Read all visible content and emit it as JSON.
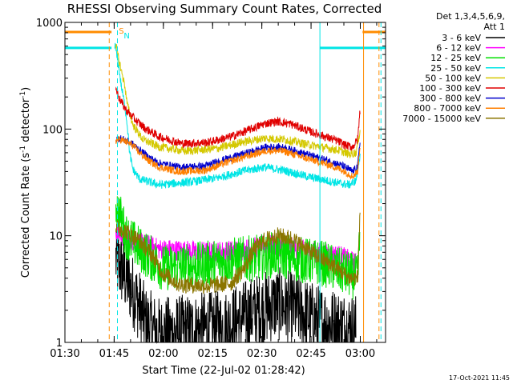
{
  "chart_data": {
    "type": "line",
    "title": "RHESSI Observing Summary Count Rates, Corrected",
    "xlabel": "Start Time (22-Jul-02 01:28:42)",
    "ylabel_main": "Corrected Count Rate (s",
    "ylabel_sup1": "-1",
    "ylabel_mid": " detector",
    "ylabel_sup2": "-1",
    "ylabel_end": ")",
    "yscale": "log",
    "ylim": [
      1,
      1000
    ],
    "xlim_minutes": [
      1.3,
      99.0
    ],
    "x_ticks": [
      {
        "label": "01:30",
        "minute": 1.3
      },
      {
        "label": "01:45",
        "minute": 16.3
      },
      {
        "label": "02:00",
        "minute": 31.3
      },
      {
        "label": "02:15",
        "minute": 46.3
      },
      {
        "label": "02:30",
        "minute": 61.3
      },
      {
        "label": "02:45",
        "minute": 76.3
      },
      {
        "label": "03:00",
        "minute": 91.3
      }
    ],
    "y_ticks": [
      {
        "label": "1",
        "value": 1
      },
      {
        "label": "10",
        "value": 10
      },
      {
        "label": "100",
        "value": 100
      },
      {
        "label": "1000",
        "value": 1000
      }
    ],
    "legend_header": [
      "Det 1,3,4,5,6,9,",
      "Att 1"
    ],
    "footer_date": "17-Oct-2021 11:45",
    "markers": [
      {
        "label": "S",
        "minute": 17.0,
        "color": "#ff8c00"
      },
      {
        "label": "N",
        "minute": 18.5,
        "color": "#00e5e5"
      }
    ],
    "flag_lines": [
      {
        "name": "attenuator",
        "color": "#ff8c00",
        "segments": [
          [
            0,
            15.5,
            1000
          ],
          [
            92.0,
            99.0,
            1000
          ]
        ]
      },
      {
        "name": "saa",
        "color": "#00e5e5",
        "segments": [
          [
            0,
            15.5,
            800
          ],
          [
            79.0,
            99.0,
            800
          ]
        ]
      }
    ],
    "vertical_lines": [
      {
        "minute": 14.8,
        "color": "#ff8c00",
        "style": "dashed"
      },
      {
        "minute": 17.3,
        "color": "#00e5e5",
        "style": "dashed"
      },
      {
        "minute": 79.0,
        "color": "#00e5e5",
        "style": "solid"
      },
      {
        "minute": 92.3,
        "color": "#ff8c00",
        "style": "solid"
      },
      {
        "minute": 97.0,
        "color": "#ff8c00",
        "style": "dashed"
      },
      {
        "minute": 97.6,
        "color": "#00e5e5",
        "style": "dashed"
      }
    ],
    "series": [
      {
        "name": "3 - 6 keV",
        "color": "#000000",
        "noise": 0.35,
        "points": [
          [
            16.8,
            6.0
          ],
          [
            19.0,
            4.5
          ],
          [
            22.0,
            3.0
          ],
          [
            24.0,
            2.2
          ],
          [
            26.0,
            1.5
          ],
          [
            30.0,
            1.2
          ],
          [
            50.0,
            1.4
          ],
          [
            60.0,
            2.0
          ],
          [
            66.0,
            2.3
          ],
          [
            72.0,
            2.0
          ],
          [
            78.0,
            1.6
          ],
          [
            90.0,
            1.3
          ]
        ]
      },
      {
        "name": "6 - 12 keV",
        "color": "#ff00ff",
        "noise": 0.1,
        "points": [
          [
            16.8,
            11.0
          ],
          [
            20.0,
            9.5
          ],
          [
            25.0,
            8.5
          ],
          [
            30.0,
            7.5
          ],
          [
            45.0,
            7.0
          ],
          [
            55.0,
            7.3
          ],
          [
            63.0,
            8.2
          ],
          [
            68.0,
            8.0
          ],
          [
            75.0,
            7.2
          ],
          [
            85.0,
            6.5
          ],
          [
            90.0,
            5.5
          ]
        ]
      },
      {
        "name": "12 - 25 keV",
        "color": "#00e000",
        "noise": 0.22,
        "points": [
          [
            16.8,
            20.0
          ],
          [
            18.5,
            14.0
          ],
          [
            20.0,
            10.0
          ],
          [
            24.0,
            7.5
          ],
          [
            28.0,
            6.0
          ],
          [
            31.0,
            5.0
          ],
          [
            40.0,
            5.2
          ],
          [
            50.0,
            5.8
          ],
          [
            60.0,
            6.2
          ],
          [
            66.0,
            6.8
          ],
          [
            72.0,
            6.0
          ],
          [
            80.0,
            5.5
          ],
          [
            88.0,
            4.3
          ],
          [
            90.5,
            4.0
          ],
          [
            91.3,
            12.0
          ]
        ]
      },
      {
        "name": "25 - 50 keV",
        "color": "#00e5e5",
        "noise": 0.04,
        "points": [
          [
            16.5,
            620.0
          ],
          [
            17.5,
            420.0
          ],
          [
            18.5,
            250.0
          ],
          [
            19.5,
            170.0
          ],
          [
            20.3,
            110.0
          ],
          [
            21.0,
            60.0
          ],
          [
            22.0,
            42.0
          ],
          [
            24.0,
            34.0
          ],
          [
            30.0,
            30.0
          ],
          [
            40.0,
            32.0
          ],
          [
            48.0,
            35.0
          ],
          [
            55.0,
            40.0
          ],
          [
            62.0,
            44.0
          ],
          [
            68.0,
            41.0
          ],
          [
            75.0,
            36.0
          ],
          [
            85.0,
            31.0
          ],
          [
            88.0,
            30.0
          ],
          [
            90.0,
            33.0
          ],
          [
            91.3,
            60.0
          ]
        ]
      },
      {
        "name": "50 - 100 keV",
        "color": "#d4c800",
        "noise": 0.04,
        "points": [
          [
            16.8,
            620.0
          ],
          [
            17.5,
            480.0
          ],
          [
            18.5,
            350.0
          ],
          [
            19.5,
            260.0
          ],
          [
            20.3,
            170.0
          ],
          [
            22.0,
            110.0
          ],
          [
            25.0,
            80.0
          ],
          [
            30.0,
            68.0
          ],
          [
            38.0,
            62.0
          ],
          [
            48.0,
            66.0
          ],
          [
            55.0,
            75.0
          ],
          [
            62.0,
            82.0
          ],
          [
            68.0,
            80.0
          ],
          [
            75.0,
            72.0
          ],
          [
            85.0,
            63.0
          ],
          [
            88.0,
            58.0
          ],
          [
            90.0,
            60.0
          ],
          [
            91.3,
            100.0
          ]
        ]
      },
      {
        "name": "100 - 300 keV",
        "color": "#e00000",
        "noise": 0.04,
        "points": [
          [
            16.8,
            240.0
          ],
          [
            18.0,
            190.0
          ],
          [
            20.0,
            150.0
          ],
          [
            23.0,
            120.0
          ],
          [
            26.0,
            100.0
          ],
          [
            30.0,
            85.0
          ],
          [
            37.0,
            73.0
          ],
          [
            45.0,
            75.0
          ],
          [
            52.0,
            85.0
          ],
          [
            58.0,
            100.0
          ],
          [
            62.0,
            112.0
          ],
          [
            66.0,
            118.0
          ],
          [
            70.0,
            112.0
          ],
          [
            76.0,
            95.0
          ],
          [
            84.0,
            78.0
          ],
          [
            87.0,
            70.0
          ],
          [
            89.0,
            68.0
          ],
          [
            90.5,
            80.0
          ],
          [
            91.3,
            160.0
          ]
        ]
      },
      {
        "name": "300 - 800 keV",
        "color": "#0000cc",
        "noise": 0.035,
        "points": [
          [
            16.8,
            80.0
          ],
          [
            18.0,
            82.0
          ],
          [
            20.0,
            78.0
          ],
          [
            22.0,
            72.0
          ],
          [
            24.0,
            64.0
          ],
          [
            27.0,
            54.0
          ],
          [
            30.0,
            48.0
          ],
          [
            36.0,
            44.0
          ],
          [
            44.0,
            45.0
          ],
          [
            50.0,
            52.0
          ],
          [
            57.0,
            60.0
          ],
          [
            63.0,
            68.0
          ],
          [
            68.0,
            67.0
          ],
          [
            75.0,
            58.0
          ],
          [
            82.0,
            50.0
          ],
          [
            86.0,
            45.0
          ],
          [
            89.0,
            40.0
          ],
          [
            90.5,
            45.0
          ],
          [
            91.3,
            80.0
          ]
        ]
      },
      {
        "name": "800 - 7000 keV",
        "color": "#ff7f00",
        "noise": 0.035,
        "points": [
          [
            16.8,
            78.0
          ],
          [
            18.0,
            80.0
          ],
          [
            20.0,
            76.0
          ],
          [
            22.0,
            70.0
          ],
          [
            24.0,
            60.0
          ],
          [
            27.0,
            50.0
          ],
          [
            30.0,
            44.0
          ],
          [
            36.0,
            40.0
          ],
          [
            44.0,
            41.0
          ],
          [
            50.0,
            48.0
          ],
          [
            57.0,
            56.0
          ],
          [
            63.0,
            63.0
          ],
          [
            68.0,
            62.0
          ],
          [
            75.0,
            53.0
          ],
          [
            82.0,
            46.0
          ],
          [
            86.0,
            41.0
          ],
          [
            89.0,
            36.0
          ],
          [
            90.5,
            40.0
          ],
          [
            91.3,
            75.0
          ]
        ]
      },
      {
        "name": "7000 - 15000 keV",
        "color": "#8b7500",
        "noise": 0.08,
        "points": [
          [
            16.8,
            12.0
          ],
          [
            20.0,
            11.0
          ],
          [
            24.0,
            9.0
          ],
          [
            28.0,
            6.5
          ],
          [
            31.0,
            4.5
          ],
          [
            36.0,
            3.5
          ],
          [
            45.0,
            3.4
          ],
          [
            52.0,
            3.6
          ],
          [
            56.0,
            5.0
          ],
          [
            59.0,
            7.5
          ],
          [
            62.0,
            9.0
          ],
          [
            66.0,
            10.0
          ],
          [
            70.0,
            9.5
          ],
          [
            74.0,
            8.0
          ],
          [
            78.0,
            6.5
          ],
          [
            84.0,
            5.0
          ],
          [
            88.0,
            4.0
          ],
          [
            90.5,
            4.0
          ],
          [
            91.3,
            20.0
          ]
        ]
      }
    ]
  }
}
